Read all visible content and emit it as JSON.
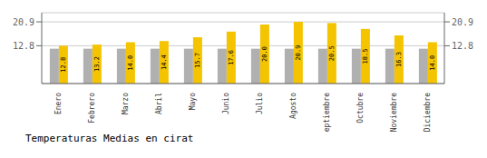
{
  "chart_data": {
    "type": "bar",
    "title": "Temperaturas Medias en cirat",
    "categories": [
      "Enero",
      "Febrero",
      "Marzo",
      "Abril",
      "Mayo",
      "Junio",
      "Julio",
      "Agosto",
      "Septiembre",
      "Octubre",
      "Noviembre",
      "Diciembre"
    ],
    "series": [
      {
        "color": "#B0B0B0",
        "values": [
          11.8,
          11.8,
          11.8,
          11.8,
          11.8,
          11.8,
          11.8,
          11.8,
          11.8,
          11.8,
          11.8,
          11.8
        ]
      },
      {
        "color": "#F5C400",
        "values": [
          12.8,
          13.2,
          14.0,
          14.4,
          15.7,
          17.6,
          20.0,
          20.9,
          20.5,
          18.5,
          16.3,
          14.0
        ],
        "data_labels": true,
        "value_labels": [
          "12.8",
          "13.2",
          "14.0",
          "14.4",
          "15.7",
          "17.6",
          "20.0",
          "20.9",
          "20.5",
          "18.5",
          "16.3",
          "14.0"
        ]
      }
    ],
    "ylim": [
      0,
      24.0
    ],
    "yticks": [
      12.8,
      20.9
    ],
    "y2lim": [
      0,
      24.0
    ],
    "y2ticks": [
      12.8,
      20.9
    ],
    "grid": true
  }
}
